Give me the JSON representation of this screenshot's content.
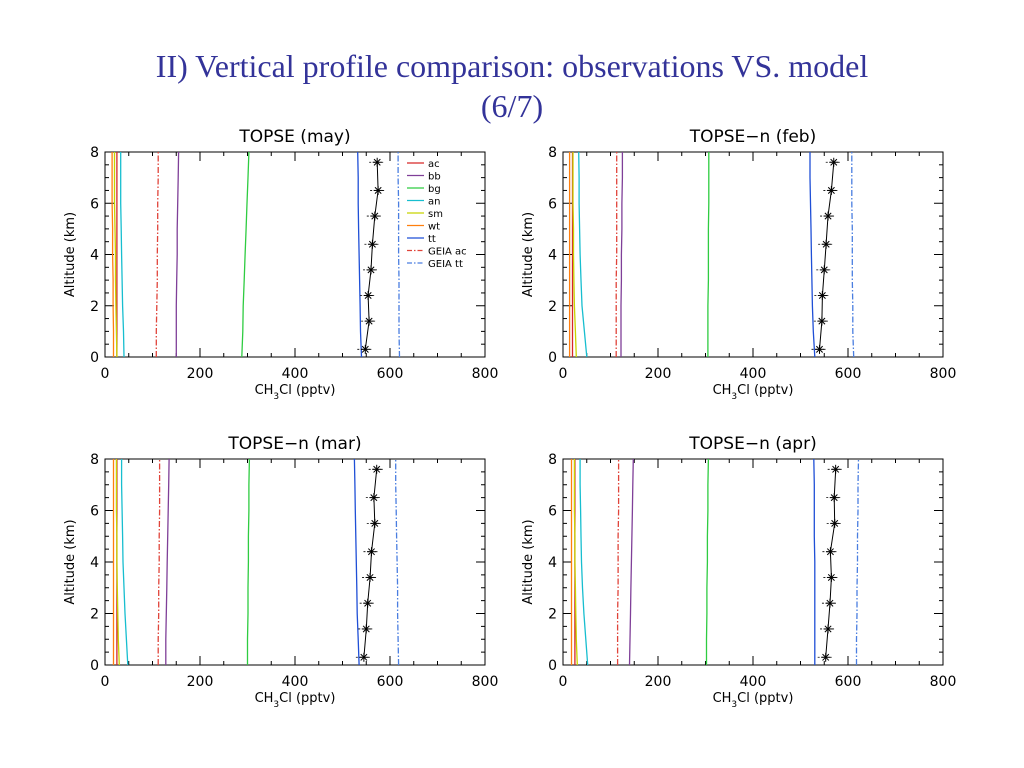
{
  "slide": {
    "title_line1": "II) Vertical profile comparison: observations VS. model",
    "title_line2": "(6/7)"
  },
  "colors": {
    "ac": "#d62728",
    "bb": "#7f3f98",
    "bg": "#2ecc40",
    "an": "#17becf",
    "sm": "#c8d400",
    "wt": "#ff7f0e",
    "tt": "#1f4fd6",
    "GEIA ac": "#e0443a",
    "GEIA tt": "#4a7ee0",
    "obs": "#000000"
  },
  "legend": [
    {
      "key": "ac",
      "label": "ac",
      "dash": false
    },
    {
      "key": "bb",
      "label": "bb",
      "dash": false
    },
    {
      "key": "bg",
      "label": "bg",
      "dash": false
    },
    {
      "key": "an",
      "label": "an",
      "dash": false
    },
    {
      "key": "sm",
      "label": "sm",
      "dash": false
    },
    {
      "key": "wt",
      "label": "wt",
      "dash": false
    },
    {
      "key": "tt",
      "label": "tt",
      "dash": false
    },
    {
      "key": "GEIA ac",
      "label": "GEIA ac",
      "dash": true
    },
    {
      "key": "GEIA tt",
      "label": "GEIA tt",
      "dash": true
    }
  ],
  "chart_data": [
    {
      "type": "line",
      "title": "TOPSE (may)",
      "xlabel": "CH3Cl (pptv)",
      "ylabel": "Altitude (km)",
      "xlim": [
        0,
        800
      ],
      "ylim": [
        0,
        8
      ],
      "xticks": [
        "0",
        "200",
        "400",
        "600",
        "800"
      ],
      "yticks": [
        "0",
        "2",
        "4",
        "6",
        "8"
      ],
      "has_legend": true,
      "altitudes": [
        0,
        1,
        2,
        3,
        4,
        5,
        6,
        7,
        8
      ],
      "model": [
        {
          "key": "ac",
          "name": "ac",
          "x": [
            25,
            25,
            25,
            25,
            25,
            25,
            25,
            25,
            25
          ]
        },
        {
          "key": "bb",
          "name": "bb",
          "x": [
            150,
            150,
            150,
            151,
            152,
            152,
            153,
            154,
            155
          ]
        },
        {
          "key": "bg",
          "name": "bg",
          "x": [
            288,
            290,
            291,
            293,
            295,
            297,
            299,
            301,
            303
          ]
        },
        {
          "key": "an",
          "name": "an",
          "x": [
            40,
            39,
            37,
            36,
            35,
            34,
            33,
            33,
            33
          ]
        },
        {
          "key": "sm",
          "name": "sm",
          "x": [
            25,
            24,
            23,
            22,
            22,
            21,
            20,
            20,
            20
          ]
        },
        {
          "key": "wt",
          "name": "wt",
          "x": [
            18,
            18,
            17,
            17,
            16,
            16,
            15,
            15,
            15
          ]
        },
        {
          "key": "tt",
          "name": "tt",
          "x": [
            540,
            538,
            537,
            536,
            535,
            534,
            533,
            533,
            532
          ]
        },
        {
          "key": "GEIA ac",
          "name": "GEIA ac",
          "x": [
            108,
            108,
            109,
            110,
            110,
            111,
            111,
            112,
            112
          ]
        },
        {
          "key": "GEIA tt",
          "name": "GEIA tt",
          "x": [
            620,
            619,
            619,
            619,
            618,
            618,
            618,
            617,
            617
          ]
        }
      ],
      "obs": {
        "y": [
          0.3,
          1.4,
          2.4,
          3.4,
          4.4,
          5.5,
          6.5,
          7.6
        ],
        "x": [
          548,
          556,
          554,
          560,
          563,
          568,
          575,
          573
        ]
      }
    },
    {
      "type": "line",
      "title": "TOPSE−n (feb)",
      "xlabel": "CH3Cl (pptv)",
      "ylabel": "Altitude (km)",
      "xlim": [
        0,
        800
      ],
      "ylim": [
        0,
        8
      ],
      "xticks": [
        "0",
        "200",
        "400",
        "600",
        "800"
      ],
      "yticks": [
        "0",
        "2",
        "4",
        "6",
        "8"
      ],
      "has_legend": false,
      "altitudes": [
        0,
        1,
        2,
        3,
        4,
        5,
        6,
        7,
        8
      ],
      "model": [
        {
          "key": "ac",
          "name": "ac",
          "x": [
            20,
            20,
            20,
            20,
            20,
            20,
            20,
            20,
            20
          ]
        },
        {
          "key": "bb",
          "name": "bb",
          "x": [
            122,
            122,
            122,
            123,
            123,
            124,
            124,
            125,
            125
          ]
        },
        {
          "key": "bg",
          "name": "bg",
          "x": [
            305,
            305,
            305,
            306,
            306,
            306,
            307,
            307,
            307
          ]
        },
        {
          "key": "an",
          "name": "an",
          "x": [
            50,
            45,
            40,
            38,
            36,
            35,
            34,
            34,
            33
          ]
        },
        {
          "key": "sm",
          "name": "sm",
          "x": [
            28,
            26,
            24,
            23,
            22,
            22,
            21,
            21,
            21
          ]
        },
        {
          "key": "wt",
          "name": "wt",
          "x": [
            14,
            14,
            14,
            14,
            14,
            14,
            14,
            14,
            14
          ]
        },
        {
          "key": "tt",
          "name": "tt",
          "x": [
            530,
            527,
            525,
            524,
            523,
            522,
            521,
            520,
            520
          ]
        },
        {
          "key": "GEIA ac",
          "name": "GEIA ac",
          "x": [
            112,
            112,
            112,
            112,
            113,
            113,
            113,
            113,
            113
          ]
        },
        {
          "key": "GEIA tt",
          "name": "GEIA tt",
          "x": [
            612,
            610,
            610,
            609,
            609,
            609,
            608,
            608,
            608
          ]
        }
      ],
      "obs": {
        "y": [
          0.3,
          1.4,
          2.4,
          3.4,
          4.4,
          5.5,
          6.5,
          7.6
        ],
        "x": [
          540,
          545,
          546,
          550,
          554,
          558,
          565,
          570
        ]
      }
    },
    {
      "type": "line",
      "title": "TOPSE−n (mar)",
      "xlabel": "CH3Cl (pptv)",
      "ylabel": "Altitude (km)",
      "xlim": [
        0,
        800
      ],
      "ylim": [
        0,
        8
      ],
      "xticks": [
        "0",
        "200",
        "400",
        "600",
        "800"
      ],
      "yticks": [
        "0",
        "2",
        "4",
        "6",
        "8"
      ],
      "has_legend": false,
      "altitudes": [
        0,
        1,
        2,
        3,
        4,
        5,
        6,
        7,
        8
      ],
      "model": [
        {
          "key": "ac",
          "name": "ac",
          "x": [
            25,
            25,
            25,
            25,
            25,
            25,
            25,
            25,
            25
          ]
        },
        {
          "key": "bb",
          "name": "bb",
          "x": [
            128,
            128,
            129,
            130,
            131,
            132,
            133,
            134,
            135
          ]
        },
        {
          "key": "bg",
          "name": "bg",
          "x": [
            300,
            300,
            301,
            301,
            302,
            302,
            303,
            303,
            304
          ]
        },
        {
          "key": "an",
          "name": "an",
          "x": [
            48,
            45,
            42,
            40,
            38,
            37,
            36,
            35,
            35
          ]
        },
        {
          "key": "sm",
          "name": "sm",
          "x": [
            30,
            28,
            27,
            26,
            25,
            25,
            24,
            24,
            24
          ]
        },
        {
          "key": "wt",
          "name": "wt",
          "x": [
            18,
            18,
            18,
            18,
            18,
            18,
            18,
            18,
            18
          ]
        },
        {
          "key": "tt",
          "name": "tt",
          "x": [
            535,
            533,
            531,
            530,
            529,
            528,
            527,
            526,
            525
          ]
        },
        {
          "key": "GEIA ac",
          "name": "GEIA ac",
          "x": [
            112,
            112,
            113,
            113,
            114,
            114,
            115,
            115,
            115
          ]
        },
        {
          "key": "GEIA tt",
          "name": "GEIA tt",
          "x": [
            618,
            617,
            616,
            616,
            615,
            614,
            613,
            612,
            612
          ]
        }
      ],
      "obs": {
        "y": [
          0.3,
          1.4,
          2.4,
          3.4,
          4.4,
          5.5,
          6.5,
          7.6
        ],
        "x": [
          545,
          550,
          553,
          558,
          561,
          568,
          566,
          572
        ]
      }
    },
    {
      "type": "line",
      "title": "TOPSE−n (apr)",
      "xlabel": "CH3Cl (pptv)",
      "ylabel": "Altitude (km)",
      "xlim": [
        0,
        800
      ],
      "ylim": [
        0,
        8
      ],
      "xticks": [
        "0",
        "200",
        "400",
        "600",
        "800"
      ],
      "yticks": [
        "0",
        "2",
        "4",
        "6",
        "8"
      ],
      "has_legend": false,
      "altitudes": [
        0,
        1,
        2,
        3,
        4,
        5,
        6,
        7,
        8
      ],
      "model": [
        {
          "key": "ac",
          "name": "ac",
          "x": [
            25,
            25,
            25,
            25,
            25,
            25,
            25,
            25,
            25
          ]
        },
        {
          "key": "bb",
          "name": "bb",
          "x": [
            140,
            141,
            142,
            143,
            144,
            145,
            146,
            147,
            148
          ]
        },
        {
          "key": "bg",
          "name": "bg",
          "x": [
            302,
            302,
            303,
            303,
            304,
            304,
            305,
            305,
            306
          ]
        },
        {
          "key": "an",
          "name": "an",
          "x": [
            52,
            48,
            44,
            41,
            39,
            38,
            37,
            36,
            36
          ]
        },
        {
          "key": "sm",
          "name": "sm",
          "x": [
            30,
            28,
            27,
            26,
            25,
            25,
            24,
            24,
            24
          ]
        },
        {
          "key": "wt",
          "name": "wt",
          "x": [
            18,
            18,
            18,
            18,
            18,
            18,
            18,
            18,
            18
          ]
        },
        {
          "key": "tt",
          "name": "tt",
          "x": [
            530,
            530,
            530,
            530,
            530,
            529,
            529,
            529,
            528
          ]
        },
        {
          "key": "GEIA ac",
          "name": "GEIA ac",
          "x": [
            115,
            115,
            115,
            116,
            116,
            116,
            117,
            117,
            117
          ]
        },
        {
          "key": "GEIA tt",
          "name": "GEIA tt",
          "x": [
            618,
            618,
            619,
            619,
            620,
            620,
            621,
            621,
            622
          ]
        }
      ],
      "obs": {
        "y": [
          0.3,
          1.4,
          2.4,
          3.4,
          4.4,
          5.5,
          6.5,
          7.6
        ],
        "x": [
          553,
          558,
          562,
          565,
          563,
          572,
          571,
          574
        ]
      }
    }
  ]
}
